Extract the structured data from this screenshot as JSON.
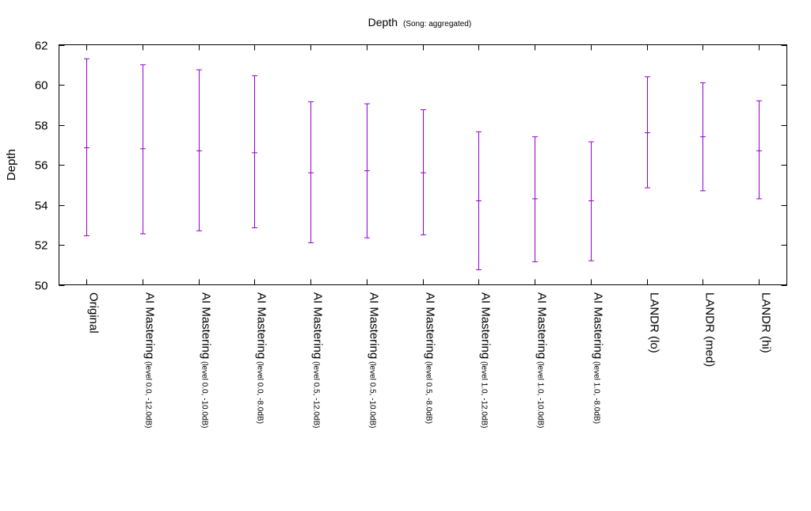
{
  "chart_data": {
    "type": "errorbar",
    "title": "Depth",
    "subtitle": "(Song: aggregated)",
    "xlabel": "",
    "ylabel": "Depth",
    "ylim": [
      50,
      62
    ],
    "yticks": [
      50,
      52,
      54,
      56,
      58,
      60,
      62
    ],
    "grid": false,
    "legend": "none",
    "color": "#9400d3",
    "categories": [
      {
        "label": "Original",
        "sub": ""
      },
      {
        "label": "AI Mastering",
        "sub": "(level 0.0, -12.0dB)"
      },
      {
        "label": "AI Mastering",
        "sub": "(level 0.0, -10.0dB)"
      },
      {
        "label": "AI Mastering",
        "sub": "(level 0.0, -8.0dB)"
      },
      {
        "label": "AI Mastering",
        "sub": "(level 0.5, -12.0dB)"
      },
      {
        "label": "AI Mastering",
        "sub": "(level 0.5, -10.0dB)"
      },
      {
        "label": "AI Mastering",
        "sub": "(level 0.5, -8.0dB)"
      },
      {
        "label": "AI Mastering",
        "sub": "(level 1.0, -12.0dB)"
      },
      {
        "label": "AI Mastering",
        "sub": "(level 1.0, -10.0dB)"
      },
      {
        "label": "AI Mastering",
        "sub": "(level 1.0, -8.0dB)"
      },
      {
        "label": "LANDR (lo)",
        "sub": ""
      },
      {
        "label": "LANDR (med)",
        "sub": ""
      },
      {
        "label": "LANDR (hi)",
        "sub": ""
      }
    ],
    "series": [
      {
        "mean": [
          56.85,
          56.8,
          56.7,
          56.6,
          55.6,
          55.7,
          55.6,
          54.2,
          54.3,
          54.2,
          57.6,
          57.4,
          56.7
        ],
        "upper": [
          61.3,
          61.0,
          60.75,
          60.45,
          59.15,
          59.05,
          58.75,
          57.65,
          57.4,
          57.15,
          60.4,
          60.1,
          59.2
        ],
        "lower": [
          52.45,
          52.55,
          52.7,
          52.85,
          52.1,
          52.35,
          52.5,
          50.75,
          51.15,
          51.2,
          54.85,
          54.7,
          54.3
        ]
      }
    ]
  }
}
